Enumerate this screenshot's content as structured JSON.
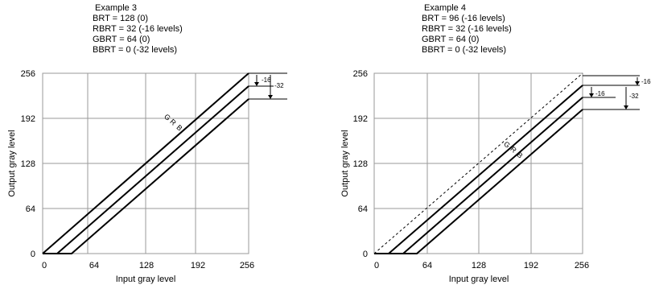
{
  "examples": [
    {
      "title": "Example 3",
      "params": [
        "BRT = 128 (0)",
        "RBRT = 32 (-16 levels)",
        "GBRT = 64 (0)",
        "BBRT = 0 (-32 levels)"
      ],
      "xlabel": "Input gray level",
      "ylabel": "Output gray level",
      "x_ticks": [
        "0",
        "64",
        "128",
        "192",
        "256"
      ],
      "y_ticks": [
        "0",
        "64",
        "128",
        "192",
        "256"
      ],
      "line_labels": [
        "G",
        "R",
        "B"
      ],
      "offset_labels": [
        "-16",
        "-32"
      ],
      "reference_line": false,
      "offsets": {
        "G": 0,
        "R": -16,
        "B": -32
      }
    },
    {
      "title": "Example 4",
      "params": [
        "BRT = 96 (-16 levels)",
        "RBRT = 32 (-16 levels)",
        "GBRT = 64 (0)",
        "BBRT = 0 (-32 levels)"
      ],
      "xlabel": "Input gray level",
      "ylabel": "Output gray level",
      "x_ticks": [
        "0",
        "64",
        "128",
        "192",
        "256"
      ],
      "y_ticks": [
        "0",
        "64",
        "128",
        "192",
        "256"
      ],
      "line_labels": [
        "G",
        "R",
        "B"
      ],
      "offset_labels": [
        "-16",
        "-16",
        "-32"
      ],
      "reference_line": true,
      "offsets": {
        "G": -16,
        "R": -32,
        "B": -48
      }
    }
  ]
}
